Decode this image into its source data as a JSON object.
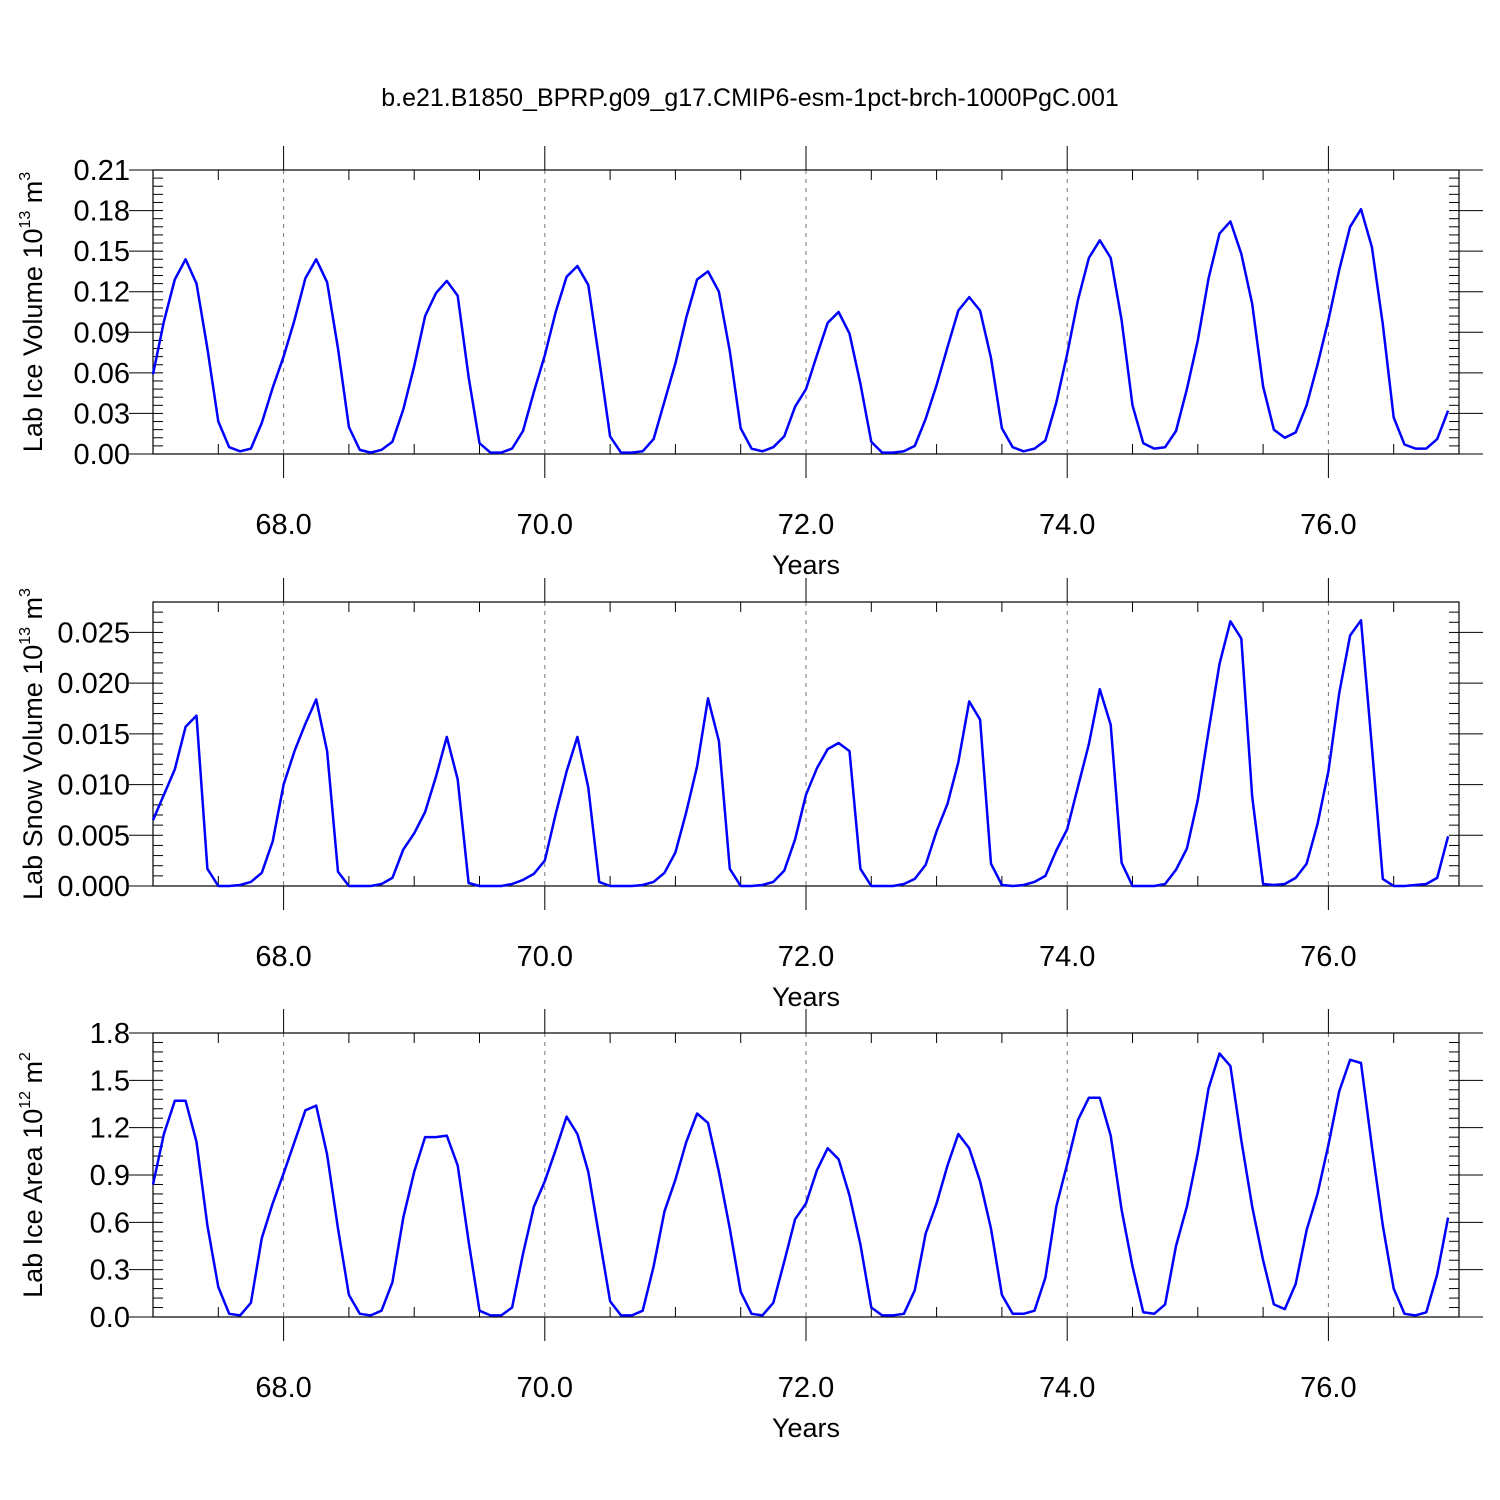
{
  "title": "b.e21.B1850_BPRP.g09_g17.CMIP6-esm-1pct-brch-1000PgC.001",
  "colors": {
    "line": "#0000ff",
    "axes": "#000000",
    "grid": "#777777"
  },
  "chart_data": [
    {
      "type": "line",
      "title": "b.e21.B1850_BPRP.g09_g17.CMIP6-esm-1pct-brch-1000PgC.001",
      "xlabel": "Years",
      "ylabel": "Lab Ice Volume 10",
      "ylabel_exp": "13",
      "ylabel_unit": " m",
      "ylabel_unit_exp": "3",
      "xlim": [
        67.0,
        77.0
      ],
      "ylim": [
        0,
        0.21
      ],
      "xticks": [
        68.0,
        70.0,
        72.0,
        74.0,
        76.0
      ],
      "xtick_labels": [
        "68.0",
        "70.0",
        "72.0",
        "74.0",
        "76.0"
      ],
      "yticks": [
        0,
        0.03,
        0.06,
        0.09,
        0.12,
        0.15,
        0.18,
        0.21
      ],
      "ytick_labels": [
        "0.00",
        "0.03",
        "0.06",
        "0.09",
        "0.12",
        "0.15",
        "0.18",
        "0.21"
      ],
      "grid": "vertical dashed at major x ticks",
      "x_start": 67.0,
      "x_step": 0.08333,
      "series": [
        {
          "values": [
            0.059,
            0.098,
            0.129,
            0.144,
            0.126,
            0.078,
            0.024,
            0.005,
            0.002,
            0.004,
            0.023,
            0.049,
            0.072,
            0.099,
            0.13,
            0.144,
            0.127,
            0.078,
            0.02,
            0.003,
            0.001,
            0.003,
            0.009,
            0.033,
            0.065,
            0.102,
            0.119,
            0.128,
            0.117,
            0.057,
            0.008,
            0.001,
            0.001,
            0.004,
            0.017,
            0.046,
            0.073,
            0.105,
            0.131,
            0.139,
            0.125,
            0.07,
            0.013,
            0.001,
            0.001,
            0.002,
            0.011,
            0.039,
            0.067,
            0.101,
            0.129,
            0.135,
            0.12,
            0.076,
            0.019,
            0.004,
            0.002,
            0.005,
            0.013,
            0.035,
            0.048,
            0.073,
            0.097,
            0.105,
            0.089,
            0.052,
            0.009,
            0.001,
            0.001,
            0.002,
            0.006,
            0.026,
            0.051,
            0.079,
            0.106,
            0.116,
            0.106,
            0.071,
            0.019,
            0.005,
            0.002,
            0.004,
            0.01,
            0.038,
            0.074,
            0.114,
            0.145,
            0.158,
            0.145,
            0.099,
            0.036,
            0.008,
            0.004,
            0.005,
            0.017,
            0.048,
            0.084,
            0.13,
            0.163,
            0.172,
            0.148,
            0.111,
            0.05,
            0.018,
            0.012,
            0.016,
            0.036,
            0.066,
            0.099,
            0.136,
            0.168,
            0.181,
            0.153,
            0.096,
            0.027,
            0.007,
            0.004,
            0.004,
            0.011,
            0.032
          ]
        }
      ]
    },
    {
      "type": "line",
      "xlabel": "Years",
      "ylabel": "Lab Snow Volume 10",
      "ylabel_exp": "13",
      "ylabel_unit": " m",
      "ylabel_unit_exp": "3",
      "xlim": [
        67.0,
        77.0
      ],
      "ylim": [
        0,
        0.028
      ],
      "xticks": [
        68.0,
        70.0,
        72.0,
        74.0,
        76.0
      ],
      "xtick_labels": [
        "68.0",
        "70.0",
        "72.0",
        "74.0",
        "76.0"
      ],
      "yticks": [
        0,
        0.005,
        0.01,
        0.015,
        0.02,
        0.025
      ],
      "ytick_labels": [
        "0.000",
        "0.005",
        "0.010",
        "0.015",
        "0.020",
        "0.025"
      ],
      "grid": "vertical dashed at major x ticks",
      "x_start": 67.0,
      "x_step": 0.08333,
      "series": [
        {
          "values": [
            0.0065,
            0.009,
            0.0115,
            0.0157,
            0.0168,
            0.0017,
            0.0,
            0.0,
            0.0001,
            0.0004,
            0.0013,
            0.0044,
            0.01,
            0.0133,
            0.016,
            0.0184,
            0.0133,
            0.0014,
            0.0,
            0.0,
            0.0,
            0.0002,
            0.0008,
            0.0036,
            0.0052,
            0.0073,
            0.0108,
            0.0147,
            0.0105,
            0.0003,
            0.0,
            0.0,
            0.0,
            0.0002,
            0.0006,
            0.0012,
            0.0025,
            0.0071,
            0.0113,
            0.0147,
            0.0097,
            0.0004,
            0.0,
            0.0,
            0.0,
            0.0001,
            0.0004,
            0.0013,
            0.0033,
            0.0073,
            0.0118,
            0.0185,
            0.0143,
            0.0017,
            0.0,
            0.0,
            0.0001,
            0.0004,
            0.0015,
            0.0046,
            0.009,
            0.0116,
            0.0135,
            0.0141,
            0.0133,
            0.0017,
            0.0,
            0.0,
            0.0,
            0.0002,
            0.0007,
            0.0021,
            0.0054,
            0.0081,
            0.0122,
            0.0182,
            0.0164,
            0.0022,
            0.0001,
            0.0,
            0.0001,
            0.0004,
            0.001,
            0.0035,
            0.0056,
            0.0098,
            0.014,
            0.0194,
            0.0159,
            0.0023,
            0.0,
            0.0,
            0.0,
            0.0002,
            0.0016,
            0.0037,
            0.0085,
            0.0153,
            0.0219,
            0.0261,
            0.0244,
            0.0088,
            0.0002,
            0.0001,
            0.0002,
            0.0008,
            0.0022,
            0.0061,
            0.0113,
            0.019,
            0.0247,
            0.0262,
            0.0137,
            0.0007,
            0.0,
            0.0,
            0.0001,
            0.0002,
            0.0008,
            0.0049
          ]
        }
      ]
    },
    {
      "type": "line",
      "xlabel": "Years",
      "ylabel": "Lab Ice Area 10",
      "ylabel_exp": "12",
      "ylabel_unit": " m",
      "ylabel_unit_exp": "2",
      "xlim": [
        67.0,
        77.0
      ],
      "ylim": [
        0,
        1.8
      ],
      "xticks": [
        68.0,
        70.0,
        72.0,
        74.0,
        76.0
      ],
      "xtick_labels": [
        "68.0",
        "70.0",
        "72.0",
        "74.0",
        "76.0"
      ],
      "yticks": [
        0,
        0.3,
        0.6,
        0.9,
        1.2,
        1.5,
        1.8
      ],
      "ytick_labels": [
        "0.0",
        "0.3",
        "0.6",
        "0.9",
        "1.2",
        "1.5",
        "1.8"
      ],
      "grid": "vertical dashed at major x ticks",
      "x_start": 67.0,
      "x_step": 0.08333,
      "series": [
        {
          "values": [
            0.84,
            1.16,
            1.37,
            1.37,
            1.11,
            0.58,
            0.19,
            0.02,
            0.01,
            0.09,
            0.5,
            0.72,
            0.91,
            1.11,
            1.31,
            1.34,
            1.03,
            0.56,
            0.14,
            0.02,
            0.01,
            0.04,
            0.22,
            0.63,
            0.92,
            1.14,
            1.14,
            1.15,
            0.96,
            0.48,
            0.04,
            0.01,
            0.01,
            0.06,
            0.4,
            0.7,
            0.86,
            1.06,
            1.27,
            1.16,
            0.92,
            0.51,
            0.1,
            0.01,
            0.01,
            0.04,
            0.32,
            0.67,
            0.87,
            1.11,
            1.29,
            1.23,
            0.92,
            0.56,
            0.16,
            0.02,
            0.01,
            0.09,
            0.35,
            0.62,
            0.72,
            0.93,
            1.07,
            1.0,
            0.77,
            0.46,
            0.06,
            0.01,
            0.01,
            0.02,
            0.17,
            0.53,
            0.72,
            0.96,
            1.16,
            1.07,
            0.86,
            0.56,
            0.14,
            0.02,
            0.02,
            0.04,
            0.25,
            0.7,
            0.97,
            1.25,
            1.39,
            1.39,
            1.15,
            0.68,
            0.32,
            0.03,
            0.02,
            0.08,
            0.45,
            0.7,
            1.04,
            1.45,
            1.67,
            1.59,
            1.12,
            0.7,
            0.36,
            0.08,
            0.05,
            0.21,
            0.55,
            0.78,
            1.09,
            1.43,
            1.63,
            1.61,
            1.08,
            0.58,
            0.18,
            0.02,
            0.01,
            0.03,
            0.27,
            0.63
          ]
        }
      ]
    }
  ]
}
